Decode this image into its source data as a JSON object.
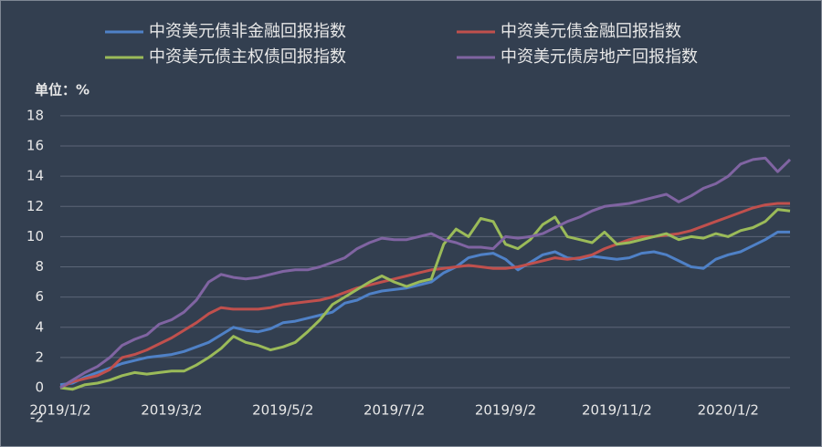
{
  "chart_data": {
    "type": "line",
    "y_unit_label": "单位：%",
    "categories": [
      "2019/1/2",
      null,
      null,
      null,
      null,
      null,
      null,
      null,
      null,
      "2019/3/2",
      null,
      null,
      null,
      null,
      null,
      null,
      null,
      null,
      "2019/5/2",
      null,
      null,
      null,
      null,
      null,
      null,
      null,
      null,
      "2019/7/2",
      null,
      null,
      null,
      null,
      null,
      null,
      null,
      null,
      "2019/9/2",
      null,
      null,
      null,
      null,
      null,
      null,
      null,
      null,
      "2019/11/2",
      null,
      null,
      null,
      null,
      null,
      null,
      null,
      null,
      "2020/1/2",
      null,
      null,
      null,
      null,
      null
    ],
    "series": [
      {
        "name": "中资美元债非金融回报指数",
        "color": "#4f81c7",
        "values": [
          0.2,
          0.3,
          0.7,
          1.0,
          1.3,
          1.6,
          1.8,
          2.0,
          2.1,
          2.2,
          2.4,
          2.7,
          3.0,
          3.5,
          4.0,
          3.8,
          3.7,
          3.9,
          4.3,
          4.4,
          4.6,
          4.8,
          5.0,
          5.6,
          5.8,
          6.2,
          6.4,
          6.5,
          6.6,
          6.8,
          7.0,
          7.6,
          8.0,
          8.6,
          8.8,
          8.9,
          8.5,
          7.8,
          8.3,
          8.8,
          9.0,
          8.6,
          8.5,
          8.7,
          8.6,
          8.5,
          8.6,
          8.9,
          9.0,
          8.8,
          8.4,
          8.0,
          7.9,
          8.5,
          8.8,
          9.0,
          9.4,
          9.8,
          10.3,
          10.3
        ]
      },
      {
        "name": "中资美元债金融回报指数",
        "color": "#c0504d",
        "values": [
          0,
          0.4,
          0.6,
          0.8,
          1.2,
          2.0,
          2.2,
          2.5,
          2.9,
          3.3,
          3.8,
          4.3,
          4.9,
          5.3,
          5.2,
          5.2,
          5.2,
          5.3,
          5.5,
          5.6,
          5.7,
          5.8,
          6.0,
          6.3,
          6.6,
          6.8,
          7.0,
          7.2,
          7.4,
          7.6,
          7.8,
          7.9,
          8.0,
          8.1,
          8.0,
          7.9,
          7.9,
          8.0,
          8.2,
          8.4,
          8.6,
          8.5,
          8.6,
          8.8,
          9.2,
          9.5,
          9.8,
          10.0,
          10.0,
          10.1,
          10.2,
          10.4,
          10.7,
          11.0,
          11.3,
          11.6,
          11.9,
          12.1,
          12.2,
          12.2
        ]
      },
      {
        "name": "中资美元债主权债回报指数",
        "color": "#9bbb59",
        "values": [
          0,
          -0.1,
          0.2,
          0.3,
          0.5,
          0.8,
          1.0,
          0.9,
          1.0,
          1.1,
          1.1,
          1.5,
          2.0,
          2.6,
          3.4,
          3.0,
          2.8,
          2.5,
          2.7,
          3.0,
          3.7,
          4.5,
          5.5,
          6.0,
          6.5,
          7.0,
          7.4,
          7.0,
          6.7,
          7.0,
          7.2,
          9.5,
          10.5,
          10.0,
          11.2,
          11.0,
          9.5,
          9.2,
          9.8,
          10.8,
          11.3,
          10.0,
          9.8,
          9.6,
          10.3,
          9.5,
          9.6,
          9.8,
          10.0,
          10.2,
          9.8,
          10.0,
          9.9,
          10.2,
          10.0,
          10.4,
          10.6,
          11.0,
          11.8,
          11.7
        ]
      },
      {
        "name": "中资美元债房地产回报指数",
        "color": "#8064a2",
        "values": [
          0,
          0.5,
          1.0,
          1.4,
          2.0,
          2.8,
          3.2,
          3.5,
          4.2,
          4.5,
          5.0,
          5.8,
          7.0,
          7.5,
          7.3,
          7.2,
          7.3,
          7.5,
          7.7,
          7.8,
          7.8,
          8.0,
          8.3,
          8.6,
          9.2,
          9.6,
          9.9,
          9.8,
          9.8,
          10.0,
          10.2,
          9.8,
          9.6,
          9.3,
          9.3,
          9.2,
          10.0,
          9.9,
          10.0,
          10.2,
          10.6,
          11.0,
          11.3,
          11.7,
          12.0,
          12.1,
          12.2,
          12.4,
          12.6,
          12.8,
          12.3,
          12.7,
          13.2,
          13.5,
          14.0,
          14.8,
          15.1,
          15.2,
          14.3,
          15.1
        ]
      }
    ],
    "ylim": [
      -2,
      18
    ],
    "yticks": [
      -2,
      0,
      2,
      4,
      6,
      8,
      10,
      12,
      14,
      16,
      18
    ],
    "grid": true
  }
}
